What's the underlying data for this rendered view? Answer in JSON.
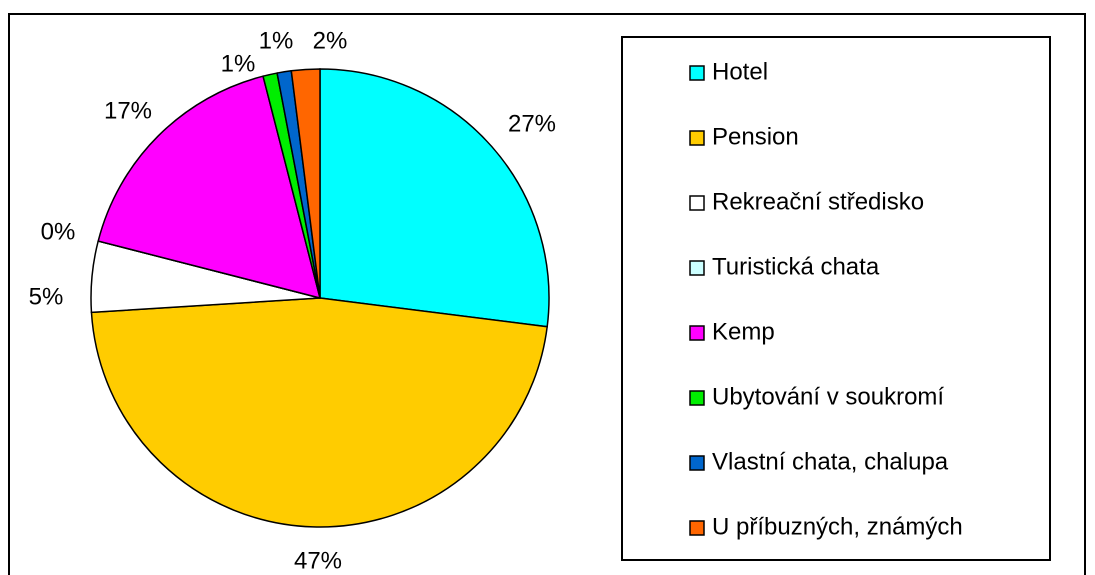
{
  "chart_data": {
    "type": "pie",
    "categories": [
      "Hotel",
      "Pension",
      "Rekreační středisko",
      "Turistická chata",
      "Kemp",
      "Ubytování v soukromí",
      "Vlastní chata, chalupa",
      "U příbuzných, známých"
    ],
    "values": [
      27,
      47,
      5,
      0,
      17,
      1,
      1,
      2
    ],
    "value_labels": [
      "27%",
      "47%",
      "5%",
      "0%",
      "17%",
      "1%",
      "1%",
      "2%"
    ],
    "colors": [
      "#00ffff",
      "#ffcc00",
      "#ffffff",
      "#ccffff",
      "#ff00ff",
      "#00ee00",
      "#0066cc",
      "#ff6600"
    ],
    "legend": "right"
  }
}
